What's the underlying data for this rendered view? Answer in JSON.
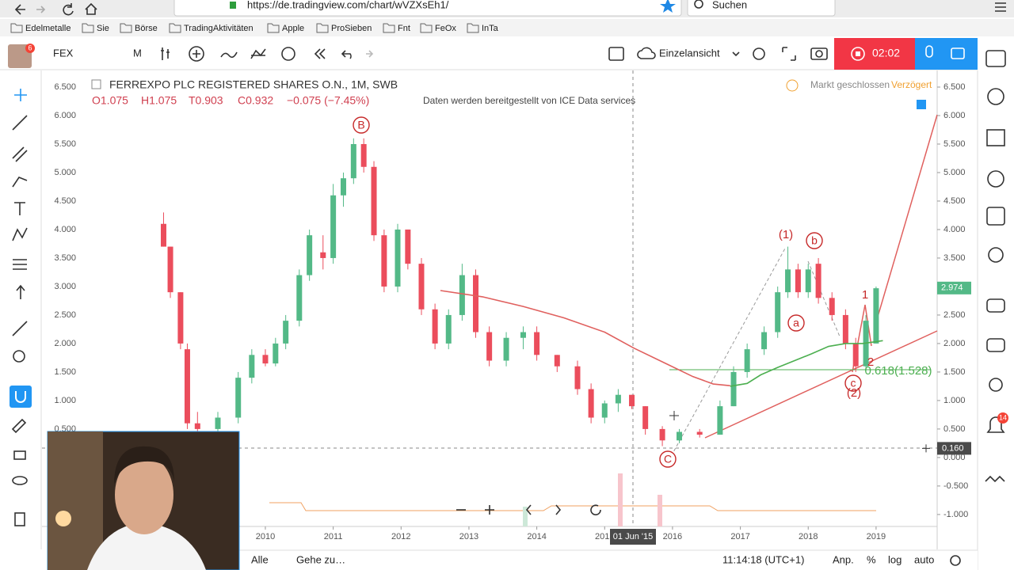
{
  "browser": {
    "url": "https://de.tradingview.com/chart/wVZXsEh1/",
    "search": "Suchen",
    "bookmarks": [
      "Edelmetalle",
      "Sie",
      "Börse",
      "TradingAktivitäten",
      "Apple",
      "ProSieben",
      "Fnt",
      "FeOx",
      "InTa"
    ]
  },
  "toolbar": {
    "symbol": "FEX",
    "interval": "M",
    "layout": "Einzelansicht",
    "record_timer": "02:02",
    "avatar_badge": "6",
    "side_badge": "14"
  },
  "legend": {
    "title": "FERREXPO PLC REGISTERED SHARES O.N., 1M, SWB",
    "ohlc": [
      "O1.075",
      "H1.075",
      "T0.903",
      "C0.932",
      "−0.075 (−7.45%)"
    ],
    "source": "Daten werden bereitgestellt von ICE Data services",
    "market_status": "Markt geschlossen",
    "delay": "Verzögert"
  },
  "chart_data": {
    "type": "candlestick",
    "x": [
      2008.5,
      2008.6,
      2008.75,
      2008.85,
      2009.0,
      2009.3,
      2009.6,
      2009.8,
      2010.0,
      2010.15,
      2010.3,
      2010.5,
      2010.65,
      2010.85,
      2011.0,
      2011.15,
      2011.3,
      2011.45,
      2011.6,
      2011.75,
      2011.95,
      2012.1,
      2012.3,
      2012.5,
      2012.7,
      2012.9,
      2013.1,
      2013.3,
      2013.55,
      2013.8,
      2014.0,
      2014.3,
      2014.6,
      2014.8,
      2015.0,
      2015.2,
      2015.4,
      2015.6,
      2015.85,
      2016.1,
      2016.4,
      2016.7,
      2016.9,
      2017.1,
      2017.35,
      2017.55,
      2017.7,
      2017.85,
      2018.0,
      2018.15,
      2018.35,
      2018.55,
      2018.7,
      2018.85,
      2019.0
    ],
    "open": [
      4.1,
      3.7,
      2.9,
      1.9,
      0.6,
      0.5,
      0.7,
      1.4,
      1.8,
      1.65,
      2.0,
      2.4,
      3.2,
      3.6,
      3.5,
      4.6,
      4.9,
      5.5,
      5.1,
      3.9,
      3.0,
      4.0,
      3.4,
      2.6,
      2.0,
      2.5,
      3.2,
      2.2,
      1.7,
      2.1,
      2.2,
      1.8,
      1.6,
      1.2,
      0.7,
      0.95,
      1.1,
      0.9,
      0.5,
      0.3,
      0.45,
      0.4,
      0.9,
      1.5,
      1.9,
      2.2,
      2.9,
      3.3,
      2.9,
      3.4,
      2.8,
      2.5,
      2.0,
      1.6,
      2.0
    ],
    "high": [
      4.3,
      3.7,
      2.9,
      2.0,
      0.8,
      0.8,
      1.5,
      1.9,
      1.9,
      2.1,
      2.5,
      3.3,
      4.0,
      3.9,
      4.8,
      5.0,
      5.6,
      5.6,
      5.2,
      4.0,
      4.1,
      4.0,
      3.5,
      2.7,
      2.6,
      3.4,
      3.3,
      2.3,
      2.2,
      2.3,
      2.3,
      1.8,
      1.7,
      1.3,
      1.0,
      1.2,
      1.1,
      0.9,
      0.55,
      0.5,
      0.5,
      1.0,
      1.6,
      2.0,
      2.3,
      3.0,
      3.7,
      3.4,
      3.4,
      3.5,
      2.9,
      2.6,
      2.1,
      2.5,
      3.0
    ],
    "low": [
      3.7,
      2.8,
      1.9,
      0.5,
      0.4,
      0.4,
      0.6,
      1.3,
      1.6,
      1.6,
      1.9,
      2.3,
      3.1,
      3.3,
      3.4,
      4.4,
      4.8,
      5.0,
      3.8,
      2.9,
      2.9,
      3.3,
      2.5,
      1.9,
      1.9,
      2.4,
      2.1,
      1.6,
      1.6,
      1.9,
      1.7,
      1.5,
      1.1,
      0.6,
      0.6,
      0.8,
      0.85,
      0.4,
      0.2,
      0.25,
      0.35,
      0.4,
      0.9,
      1.4,
      1.8,
      2.1,
      2.8,
      2.8,
      2.8,
      2.7,
      2.4,
      1.9,
      1.5,
      1.5,
      2.0
    ],
    "close": [
      3.7,
      2.9,
      2.0,
      0.6,
      0.5,
      0.7,
      1.4,
      1.8,
      1.65,
      2.0,
      2.4,
      3.2,
      3.9,
      3.5,
      4.6,
      4.9,
      5.5,
      5.1,
      3.9,
      3.0,
      4.0,
      3.4,
      2.6,
      2.0,
      2.5,
      3.2,
      2.2,
      1.7,
      2.1,
      2.2,
      1.8,
      1.6,
      1.2,
      0.7,
      0.95,
      1.1,
      0.9,
      0.5,
      0.3,
      0.45,
      0.4,
      0.9,
      1.5,
      1.9,
      2.2,
      2.9,
      3.3,
      2.9,
      3.3,
      2.8,
      2.5,
      2.0,
      1.6,
      2.4,
      2.97
    ],
    "up_color": "#53b987",
    "down_color": "#eb4d5c",
    "lines": [
      {
        "color": "#e0605e",
        "x": [
          2012.58,
          2013.2,
          2013.8,
          2014.4,
          2015.0,
          2015.43,
          2015.9,
          2016.3,
          2016.6,
          2016.85
        ],
        "values": [
          2.93,
          2.82,
          2.65,
          2.45,
          2.2,
          1.92,
          1.65,
          1.42,
          1.29,
          1.26
        ]
      },
      {
        "color": "#4caf50",
        "x": [
          2016.85,
          2017.1,
          2017.3,
          2017.55,
          2017.8,
          2018.05,
          2018.3,
          2018.55,
          2018.8,
          2019.1
        ],
        "values": [
          1.25,
          1.3,
          1.45,
          1.58,
          1.7,
          1.82,
          1.95,
          2.0,
          2.0,
          2.05
        ]
      }
    ],
    "xlim": [
      2006.79,
      2019.9
    ],
    "ylim": [
      -1.21,
      6.75
    ],
    "xticks": [
      2010,
      2011,
      2012,
      2013,
      2014,
      2015,
      2016,
      2017,
      2018,
      2019
    ],
    "yticks": [
      {
        "value": 6.5,
        "label": "6.500"
      },
      {
        "value": 6.0,
        "label": "6.000"
      },
      {
        "value": 5.5,
        "label": "5.500"
      },
      {
        "value": 5.0,
        "label": "5.000"
      },
      {
        "value": 4.5,
        "label": "4.500"
      },
      {
        "value": 4.0,
        "label": "4.000"
      },
      {
        "value": 3.5,
        "label": "3.500"
      },
      {
        "value": 3.0,
        "label": "3.000"
      },
      {
        "value": 2.5,
        "label": "2.500"
      },
      {
        "value": 2.0,
        "label": "2.000"
      },
      {
        "value": 1.5,
        "label": "1.500"
      },
      {
        "value": 1.0,
        "label": "1.000"
      },
      {
        "value": 0.5,
        "label": "0.500"
      },
      {
        "value": 0.0,
        "label": "0.000"
      },
      {
        "value": -0.5,
        "label": "-0.500"
      },
      {
        "value": -1.0,
        "label": "-1.000"
      }
    ],
    "last_price": 2.974,
    "crosshair": {
      "price": {
        "value": 0.16,
        "label": "0.160"
      },
      "date": "01 Jun '15"
    }
  },
  "annotations": [
    {
      "text": "B",
      "circled": true,
      "color": "#c62828"
    },
    {
      "text": "(1)",
      "circled": false,
      "color": "#c62828"
    },
    {
      "text": "b",
      "circled": true,
      "color": "#c62828"
    },
    {
      "text": "a",
      "circled": true,
      "color": "#c62828"
    },
    {
      "text": "1",
      "circled": false,
      "color": "#c62828"
    },
    {
      "text": "2",
      "circled": false,
      "color": "#c62828"
    },
    {
      "text": "c",
      "circled": true,
      "color": "#c62828"
    },
    {
      "text": "(2)",
      "circled": false,
      "color": "#c62828"
    },
    {
      "text": "C",
      "circled": true,
      "color": "#c62828"
    },
    {
      "text": "0.618(1.528)",
      "circled": false,
      "color": "#4caf50"
    }
  ],
  "bottom_bar": {
    "range": "Alle",
    "goto": "Gehe zu…",
    "clock": "11:14:18 (UTC+1)",
    "adjust": "Anp.",
    "percent": "%",
    "log": "log",
    "auto": "auto"
  }
}
